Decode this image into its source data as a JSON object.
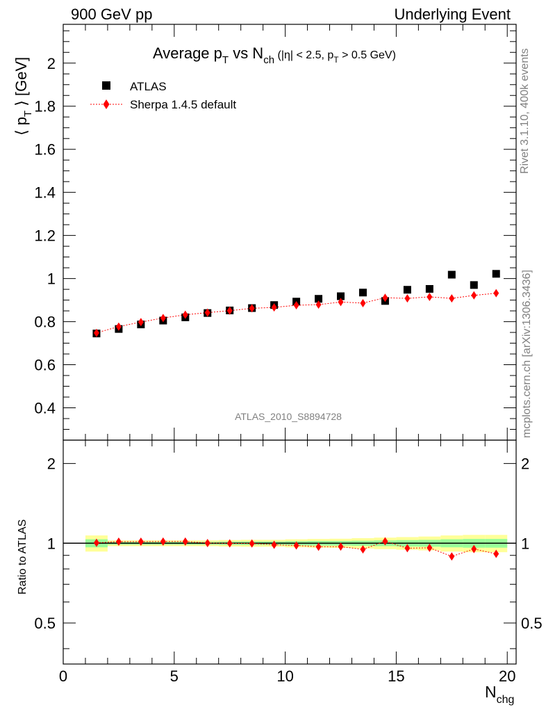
{
  "header": {
    "left": "900 GeV pp",
    "right": "Underlying Event"
  },
  "side": {
    "rivet": "Rivet 3.1.10,  400k events",
    "mcplots": "mcplots.cern.ch [arXiv:1306.3436]"
  },
  "title": {
    "main": "Average p",
    "main_sub": "T",
    "vs": " vs N",
    "vs_sub": "ch",
    "cut_a": " (|η| < 2.5, p",
    "cut_sub": "T",
    "cut_b": " > 0.5 GeV)"
  },
  "analysis_label": "ATLAS_2010_S8894728",
  "ylabel": {
    "pre": "⟨ p",
    "sub": "T",
    "post": " ⟩ [GeV]"
  },
  "ratio_ylabel": "Ratio to ATLAS",
  "xlabel": {
    "main": "N",
    "sub": "chg"
  },
  "colors": {
    "data": "#000000",
    "mc": "#ff0000",
    "band_outer": "#ffff99",
    "band_inner": "#99ff99",
    "side_text": "#808080"
  },
  "chart_data": {
    "type": "scatter",
    "xlim": [
      0,
      20.4
    ],
    "ylim": [
      0.25,
      2.18
    ],
    "ratio_ylim": [
      0.35,
      2.45
    ],
    "ratio_scale": "log",
    "grid": false,
    "legend_position": "top-left",
    "x_ticks": [
      "0",
      "5",
      "10",
      "15",
      "20"
    ],
    "y_ticks": [
      "0.4",
      "0.6",
      "0.8",
      "1",
      "1.2",
      "1.4",
      "1.6",
      "1.8",
      "2"
    ],
    "ratio_y_ticks": [
      "0.5",
      "1",
      "2"
    ],
    "x": [
      1.5,
      2.5,
      3.5,
      4.5,
      5.5,
      6.5,
      7.5,
      8.5,
      9.5,
      10.5,
      11.5,
      12.5,
      13.5,
      14.5,
      15.5,
      16.5,
      17.5,
      18.5,
      19.5
    ],
    "series": [
      {
        "name": "ATLAS",
        "values": [
          0.745,
          0.766,
          0.787,
          0.805,
          0.82,
          0.84,
          0.852,
          0.863,
          0.877,
          0.893,
          0.906,
          0.918,
          0.935,
          0.896,
          0.948,
          0.952,
          1.018,
          0.97,
          1.022
        ]
      },
      {
        "name": "Sherpa 1.4.5 default",
        "values": [
          0.748,
          0.777,
          0.798,
          0.817,
          0.832,
          0.842,
          0.851,
          0.862,
          0.866,
          0.876,
          0.879,
          0.891,
          0.886,
          0.911,
          0.908,
          0.915,
          0.908,
          0.922,
          0.932
        ]
      }
    ],
    "ratio": [
      1.004,
      1.014,
      1.014,
      1.015,
      1.015,
      1.002,
      0.999,
      0.998,
      0.987,
      0.981,
      0.97,
      0.971,
      0.948,
      1.017,
      0.958,
      0.961,
      0.892,
      0.951,
      0.912
    ],
    "bands": {
      "x_edges": [
        1,
        2,
        3,
        4,
        5,
        6,
        7,
        8,
        9,
        10,
        11,
        12,
        13,
        14,
        15,
        16,
        17,
        18,
        19,
        20
      ],
      "outer": [
        0.07,
        0.025,
        0.025,
        0.025,
        0.025,
        0.025,
        0.028,
        0.03,
        0.03,
        0.035,
        0.038,
        0.04,
        0.045,
        0.05,
        0.055,
        0.06,
        0.07,
        0.075,
        0.075
      ],
      "inner": [
        0.035,
        0.012,
        0.012,
        0.012,
        0.012,
        0.012,
        0.014,
        0.015,
        0.015,
        0.018,
        0.02,
        0.02,
        0.022,
        0.025,
        0.028,
        0.03,
        0.035,
        0.038,
        0.038
      ]
    }
  }
}
